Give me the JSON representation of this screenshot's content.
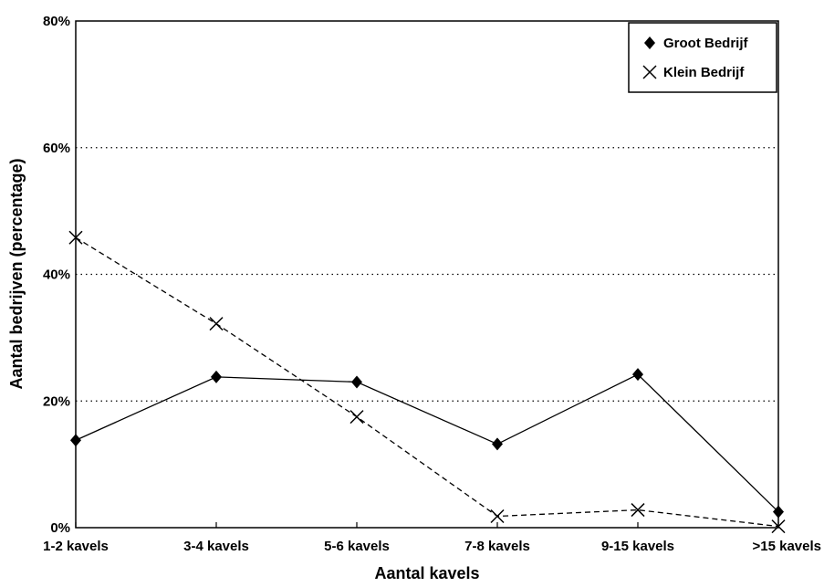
{
  "chart_data": {
    "type": "line",
    "title": "",
    "xlabel": "Aantal kavels",
    "ylabel": "Aantal bedrijven (percentage)",
    "categories": [
      "1-2 kavels",
      "3-4 kavels",
      "5-6 kavels",
      "7-8 kavels",
      "9-15 kavels",
      ">15 kavels"
    ],
    "y_ticks": [
      0,
      20,
      40,
      60,
      80
    ],
    "y_tick_labels": [
      "0%",
      "20%",
      "40%",
      "60%",
      "80%"
    ],
    "ylim": [
      0,
      80
    ],
    "grid": "horizontal dotted",
    "legend_position": "top-right",
    "series": [
      {
        "name": "Groot Bedrijf",
        "marker": "diamond",
        "line": "solid",
        "values": [
          13.8,
          23.8,
          23.0,
          13.2,
          24.2,
          2.5
        ]
      },
      {
        "name": "Klein Bedrijf",
        "marker": "x",
        "line": "dashed",
        "values": [
          45.8,
          32.2,
          17.5,
          1.8,
          2.8,
          0.2
        ]
      }
    ]
  }
}
